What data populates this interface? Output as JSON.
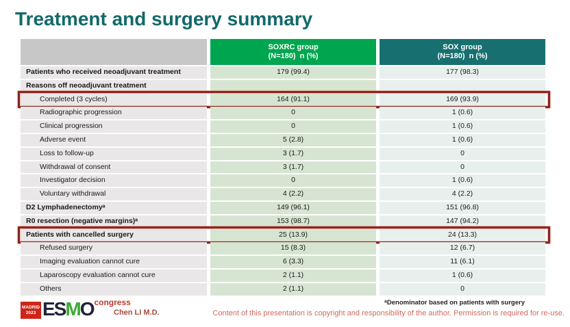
{
  "slide": {
    "title": "Treatment and surgery summary",
    "footnote": "ᵃDenominator based on patients with surgery",
    "copyright": "Content of this presentation is copyright and responsibility of the author. Permission is required for re-use.",
    "author": "Chen LI M.D.",
    "logo": {
      "city": "MADRID",
      "year": "2023",
      "name_part1": "ES",
      "name_part2": "M",
      "name_part3": "O",
      "suffix": "congress"
    }
  },
  "colors": {
    "title_teal": "#12696b",
    "soxrc_header_green": "#00a64f",
    "sox_header_teal": "#17706f",
    "label_col_grey": "#e9e7e8",
    "soxrc_col_green": "#d6e5d1",
    "sox_col_teal": "#e8f0ed",
    "highlight_red": "#8e2420",
    "logo_red": "#cf2418",
    "copyright_red": "#d2685e"
  },
  "table": {
    "columns": [
      {
        "label": "",
        "sublabel": ""
      },
      {
        "label": "SOXRC group",
        "sublabel": "(N=180)  n (%)"
      },
      {
        "label": "SOX group",
        "sublabel": "(N=180)  n (%)"
      }
    ],
    "rows": [
      {
        "label": "Patients who received neoadjuvant treatment",
        "soxrc": "179 (99.4)",
        "sox": "177 (98.3)",
        "bold": true,
        "indent": false,
        "highlight": false
      },
      {
        "label": "Reasons off neoadjuvant treatment",
        "soxrc": "",
        "sox": "",
        "bold": true,
        "indent": false,
        "highlight": false
      },
      {
        "label": "Completed (3 cycles)",
        "soxrc": "164 (91.1)",
        "sox": "169 (93.9)",
        "bold": false,
        "indent": true,
        "highlight": true
      },
      {
        "label": "Radiographic progression",
        "soxrc": "0",
        "sox": "1 (0.6)",
        "bold": false,
        "indent": true,
        "highlight": false
      },
      {
        "label": "Clinical progression",
        "soxrc": "0",
        "sox": "1 (0.6)",
        "bold": false,
        "indent": true,
        "highlight": false
      },
      {
        "label": "Adverse event",
        "soxrc": "5 (2.8)",
        "sox": "1 (0.6)",
        "bold": false,
        "indent": true,
        "highlight": false
      },
      {
        "label": "Loss to follow-up",
        "soxrc": "3 (1.7)",
        "sox": "0",
        "bold": false,
        "indent": true,
        "highlight": false
      },
      {
        "label": "Withdrawal of consent",
        "soxrc": "3 (1.7)",
        "sox": "0",
        "bold": false,
        "indent": true,
        "highlight": false
      },
      {
        "label": "Investigator decision",
        "soxrc": "0",
        "sox": "1 (0.6)",
        "bold": false,
        "indent": true,
        "highlight": false
      },
      {
        "label": "Voluntary withdrawal",
        "soxrc": "4 (2.2)",
        "sox": "4 (2.2)",
        "bold": false,
        "indent": true,
        "highlight": false
      },
      {
        "label": "D2 Lymphadenectomyᵃ",
        "soxrc": "149 (96.1)",
        "sox": "151 (96.8)",
        "bold": true,
        "indent": false,
        "highlight": false
      },
      {
        "label": "R0 resection (negative margins)ᵃ",
        "soxrc": "153 (98.7)",
        "sox": "147 (94.2)",
        "bold": true,
        "indent": false,
        "highlight": false
      },
      {
        "label": "Patients with cancelled surgery",
        "soxrc": "25 (13.9)",
        "sox": "24 (13.3)",
        "bold": true,
        "indent": false,
        "highlight": true
      },
      {
        "label": "Refused surgery",
        "soxrc": "15 (8.3)",
        "sox": "12 (6.7)",
        "bold": false,
        "indent": true,
        "highlight": false
      },
      {
        "label": "Imaging evaluation cannot cure",
        "soxrc": "6 (3.3)",
        "sox": "11 (6.1)",
        "bold": false,
        "indent": true,
        "highlight": false
      },
      {
        "label": "Laparoscopy evaluation cannot cure",
        "soxrc": "2 (1.1)",
        "sox": "1 (0.6)",
        "bold": false,
        "indent": true,
        "highlight": false
      },
      {
        "label": "Others",
        "soxrc": "2 (1.1)",
        "sox": "0",
        "bold": false,
        "indent": true,
        "highlight": false
      }
    ]
  }
}
